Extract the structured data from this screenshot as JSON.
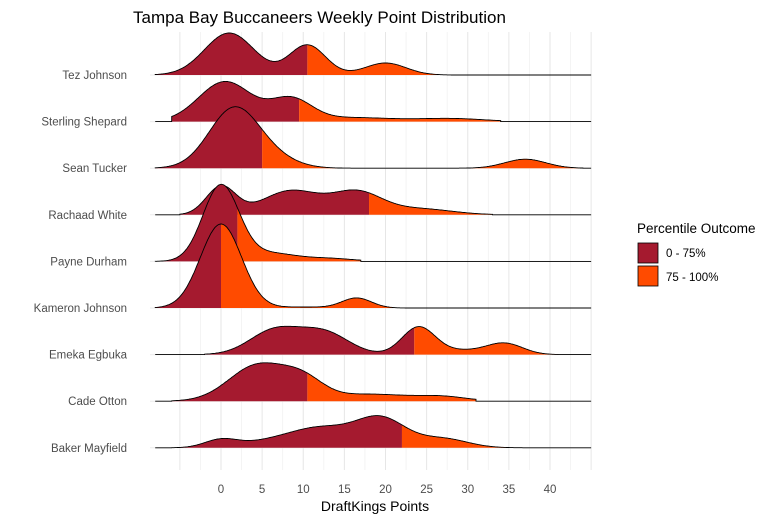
{
  "chart_data": {
    "type": "ridgeline",
    "title": "Tampa Bay Buccaneers Weekly Point Distribution",
    "xlabel": "DraftKings Points",
    "ylabel": "",
    "xlim": [
      -8,
      45
    ],
    "xticks": [
      0,
      5,
      10,
      15,
      20,
      25,
      30,
      35,
      40
    ],
    "grid": true,
    "legend": {
      "title": "Percentile Outcome",
      "position": "right",
      "entries": [
        {
          "label": "0 - 75%",
          "color": "#A51A2F"
        },
        {
          "label": "75 - 100%",
          "color": "#FF4B00"
        }
      ]
    },
    "series_note": "each player's density approximated as sum of gaussian components [mean, sd, relative density]; split = 75th percentile point",
    "series": [
      {
        "name": "Tez Johnson",
        "split": 10.5,
        "range": [
          -8,
          28
        ],
        "components": [
          [
            1,
            3,
            42
          ],
          [
            10.5,
            2.2,
            30
          ],
          [
            20,
            2.5,
            12
          ]
        ]
      },
      {
        "name": "Sterling Shepard",
        "split": 9.5,
        "range": [
          -6,
          34
        ],
        "components": [
          [
            0.5,
            3.2,
            40
          ],
          [
            8.5,
            2.5,
            22
          ],
          [
            16,
            5,
            4
          ],
          [
            28,
            4,
            3
          ]
        ]
      },
      {
        "name": "Sean Tucker",
        "split": 5,
        "range": [
          -8,
          44
        ],
        "components": [
          [
            1.5,
            3,
            58
          ],
          [
            6,
            3,
            10
          ],
          [
            37,
            2.5,
            9
          ]
        ]
      },
      {
        "name": "Rachaad White",
        "split": 18,
        "range": [
          -5,
          33
        ],
        "components": [
          [
            0,
            1.8,
            28
          ],
          [
            8.5,
            3.5,
            24
          ],
          [
            16.5,
            3,
            22
          ],
          [
            24,
            4,
            6
          ]
        ]
      },
      {
        "name": "Payne Durham",
        "split": 2,
        "range": [
          -8,
          17
        ],
        "components": [
          [
            0,
            2.2,
            76
          ],
          [
            6,
            3,
            8
          ],
          [
            13,
            3,
            3
          ]
        ]
      },
      {
        "name": "Kameron Johnson",
        "split": 0,
        "range": [
          -8,
          26
        ],
        "components": [
          [
            0,
            2.5,
            84
          ],
          [
            16.5,
            1.8,
            10
          ],
          [
            10,
            3,
            1
          ]
        ]
      },
      {
        "name": "Emeka Egbuka",
        "split": 23.5,
        "range": [
          -2,
          41
        ],
        "components": [
          [
            6.5,
            3,
            24
          ],
          [
            12.5,
            3,
            22
          ],
          [
            24,
            2,
            27
          ],
          [
            34.5,
            2.2,
            11
          ],
          [
            29,
            3,
            4
          ]
        ]
      },
      {
        "name": "Cade Otton",
        "split": 10.5,
        "range": [
          -6,
          31
        ],
        "components": [
          [
            4.5,
            3.5,
            36
          ],
          [
            10,
            2.5,
            18
          ],
          [
            18,
            5,
            7
          ],
          [
            27,
            3,
            4
          ]
        ]
      },
      {
        "name": "Baker Mayfield",
        "split": 22,
        "range": [
          -6,
          37
        ],
        "components": [
          [
            0,
            2,
            8
          ],
          [
            12,
            4,
            20
          ],
          [
            19.5,
            3,
            28
          ],
          [
            27,
            3,
            9
          ],
          [
            5,
            3,
            4
          ]
        ]
      }
    ]
  }
}
